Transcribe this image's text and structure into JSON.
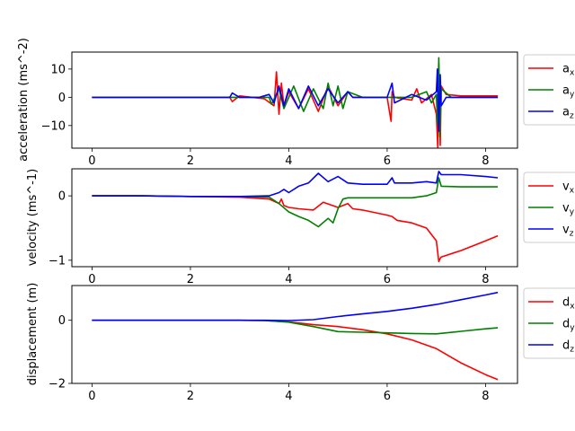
{
  "chart_data": [
    {
      "type": "line",
      "ylabel": "acceleration (ms^-2)",
      "xlim": [
        -0.41,
        8.65
      ],
      "ylim": [
        -18,
        16
      ],
      "xticks": [
        0,
        2,
        4,
        6,
        8
      ],
      "yticks": [
        -10,
        0,
        10
      ],
      "legend": "outside-right",
      "series": [
        {
          "name": "a_x",
          "color": "#ff0000",
          "x": [
            0,
            1,
            2,
            2.8,
            2.85,
            3.0,
            3.5,
            3.7,
            3.75,
            3.8,
            3.85,
            3.9,
            4.0,
            4.2,
            4.4,
            4.6,
            4.8,
            5.0,
            5.2,
            5.3,
            5.5,
            6.0,
            6.08,
            6.1,
            6.15,
            6.5,
            6.6,
            6.7,
            6.9,
            7.0,
            7.03,
            7.05,
            7.08,
            7.1,
            7.2,
            7.5,
            8.0,
            8.25
          ],
          "y": [
            0,
            0,
            0,
            0,
            -1.5,
            0.5,
            -0.5,
            -3,
            9,
            -6,
            5,
            -3,
            2,
            -4,
            3,
            -5,
            4,
            -3,
            2,
            0,
            0,
            0,
            -8.5,
            2,
            0,
            -1,
            3,
            -2,
            1,
            -6,
            -18,
            12,
            -17,
            4,
            1,
            0.5,
            0.5,
            0.5
          ]
        },
        {
          "name": "a_y",
          "color": "#008000",
          "x": [
            0,
            1,
            2,
            3,
            3.6,
            3.65,
            3.8,
            3.9,
            4.1,
            4.3,
            4.5,
            4.7,
            4.8,
            4.9,
            5.0,
            5.1,
            5.2,
            5.5,
            6.0,
            6.5,
            6.8,
            6.9,
            7.0,
            7.02,
            7.05,
            7.07,
            7.1,
            7.3,
            8.0,
            8.25
          ],
          "y": [
            0,
            0,
            0,
            0,
            0,
            -2.5,
            3,
            -4,
            4,
            -5,
            3,
            -4,
            5,
            -3,
            4,
            -4,
            2,
            0,
            0,
            0,
            2,
            -2,
            1,
            -9,
            14,
            -14,
            3,
            0,
            0,
            0
          ]
        },
        {
          "name": "a_z",
          "color": "#0000ff",
          "x": [
            0,
            1,
            2,
            2.8,
            2.85,
            3.0,
            3.4,
            3.6,
            3.7,
            3.8,
            3.9,
            4.0,
            4.2,
            4.4,
            4.6,
            4.8,
            5.0,
            5.2,
            5.3,
            5.6,
            6.0,
            6.1,
            6.15,
            6.5,
            6.8,
            7.0,
            7.02,
            7.05,
            7.08,
            7.1,
            7.2,
            7.5,
            8.0,
            8.25
          ],
          "y": [
            0,
            0,
            0,
            0,
            1.5,
            0,
            0,
            1,
            -2,
            4,
            -3,
            3,
            -4,
            4,
            -3,
            3,
            -2,
            2,
            0,
            0,
            0,
            5,
            -2,
            1,
            -1,
            2,
            10,
            -12,
            8,
            -3,
            0,
            0,
            0,
            0
          ]
        }
      ]
    },
    {
      "type": "line",
      "ylabel": "velocity (ms^-1)",
      "xlim": [
        -0.41,
        8.65
      ],
      "ylim": [
        -1.1,
        0.42
      ],
      "xticks": [
        0,
        2,
        4,
        6,
        8
      ],
      "yticks": [
        -1,
        0
      ],
      "legend": "outside-right",
      "series": [
        {
          "name": "v_x",
          "color": "#ff0000",
          "x": [
            0,
            1,
            2,
            3,
            3.6,
            3.8,
            3.85,
            3.9,
            4.0,
            4.2,
            4.5,
            4.7,
            5.0,
            5.2,
            5.3,
            5.5,
            6.0,
            6.1,
            6.2,
            6.5,
            6.8,
            7.0,
            7.05,
            7.08,
            7.1,
            7.5,
            8.0,
            8.25
          ],
          "y": [
            0,
            0,
            -0.01,
            -0.02,
            -0.05,
            -0.12,
            -0.05,
            -0.15,
            -0.18,
            -0.2,
            -0.22,
            -0.1,
            -0.18,
            -0.12,
            -0.2,
            -0.22,
            -0.3,
            -0.32,
            -0.38,
            -0.42,
            -0.5,
            -0.7,
            -1.02,
            -0.97,
            -0.95,
            -0.85,
            -0.7,
            -0.62
          ]
        },
        {
          "name": "v_y",
          "color": "#008000",
          "x": [
            0,
            1,
            2,
            3,
            3.6,
            3.8,
            4.0,
            4.2,
            4.4,
            4.6,
            4.8,
            4.9,
            5.0,
            5.1,
            5.2,
            5.5,
            6.0,
            6.5,
            6.8,
            7.0,
            7.05,
            7.1,
            7.5,
            8.0,
            8.25
          ],
          "y": [
            0,
            0,
            -0.01,
            -0.01,
            -0.02,
            -0.12,
            -0.25,
            -0.32,
            -0.38,
            -0.48,
            -0.35,
            -0.42,
            -0.2,
            -0.05,
            -0.03,
            -0.03,
            -0.03,
            -0.03,
            0.0,
            0.05,
            0.28,
            0.15,
            0.14,
            0.14,
            0.14
          ]
        },
        {
          "name": "v_z",
          "color": "#0000ff",
          "x": [
            0,
            1,
            2,
            3,
            3.6,
            3.8,
            3.9,
            4.0,
            4.2,
            4.4,
            4.6,
            4.8,
            5.0,
            5.2,
            5.5,
            6.0,
            6.1,
            6.15,
            6.5,
            6.8,
            7.0,
            7.05,
            7.1,
            7.5,
            8.0,
            8.25
          ],
          "y": [
            0,
            0,
            -0.01,
            -0.01,
            0.0,
            0.05,
            0.1,
            0.05,
            0.15,
            0.2,
            0.35,
            0.22,
            0.3,
            0.2,
            0.18,
            0.18,
            0.28,
            0.2,
            0.2,
            0.22,
            0.2,
            0.38,
            0.33,
            0.33,
            0.3,
            0.28
          ]
        }
      ]
    },
    {
      "type": "line",
      "ylabel": "displacement (m)",
      "xlim": [
        -0.41,
        8.65
      ],
      "ylim": [
        -2.0,
        1.1
      ],
      "xticks": [
        0,
        2,
        4,
        6,
        8
      ],
      "yticks": [
        -2,
        0
      ],
      "legend": "outside-right",
      "series": [
        {
          "name": "d_x",
          "color": "#ff0000",
          "x": [
            0,
            1,
            2,
            3,
            3.5,
            4.0,
            4.5,
            5.0,
            5.5,
            6.0,
            6.5,
            7.0,
            7.5,
            8.0,
            8.25
          ],
          "y": [
            0,
            0,
            0,
            0,
            -0.01,
            -0.05,
            -0.14,
            -0.2,
            -0.3,
            -0.43,
            -0.62,
            -0.9,
            -1.35,
            -1.72,
            -1.88
          ]
        },
        {
          "name": "d_y",
          "color": "#008000",
          "x": [
            0,
            1,
            2,
            3,
            3.5,
            4.0,
            4.5,
            5.0,
            5.5,
            6.0,
            6.5,
            7.0,
            7.5,
            8.0,
            8.25
          ],
          "y": [
            0,
            0,
            0,
            0,
            -0.01,
            -0.06,
            -0.2,
            -0.36,
            -0.38,
            -0.4,
            -0.42,
            -0.43,
            -0.35,
            -0.27,
            -0.24
          ]
        },
        {
          "name": "d_z",
          "color": "#0000ff",
          "x": [
            0,
            1,
            2,
            3,
            3.5,
            4.0,
            4.5,
            5.0,
            5.5,
            6.0,
            6.5,
            7.0,
            7.5,
            8.0,
            8.25
          ],
          "y": [
            0,
            0,
            0,
            0,
            0,
            -0.01,
            0.02,
            0.12,
            0.2,
            0.28,
            0.38,
            0.5,
            0.65,
            0.8,
            0.88
          ]
        }
      ]
    }
  ]
}
